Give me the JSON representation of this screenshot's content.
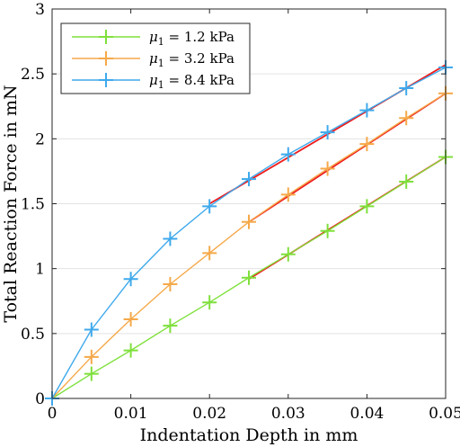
{
  "chart_data": {
    "type": "line",
    "xlabel": "Indentation Depth in mm",
    "ylabel": "Total Reaction Force in mN",
    "xlim": [
      0,
      0.05
    ],
    "ylim": [
      0,
      3
    ],
    "xticks": [
      "0",
      "0.01",
      "0.02",
      "0.03",
      "0.04",
      "0.05"
    ],
    "yticks": [
      "0",
      "0.5",
      "1",
      "1.5",
      "2",
      "2.5",
      "3"
    ],
    "grid": "horizontal",
    "legend_position": "top-left",
    "x": [
      0,
      0.005,
      0.01,
      0.015,
      0.02,
      0.025,
      0.03,
      0.035,
      0.04,
      0.045,
      0.05
    ],
    "series": [
      {
        "name": "μ1 = 1.2 kPa",
        "legend_math": "μ",
        "legend_sub": "1",
        "legend_rest": " = 1.2 kPa",
        "color": "#7fe03c",
        "values": [
          0,
          0.19,
          0.37,
          0.56,
          0.74,
          0.93,
          1.11,
          1.29,
          1.48,
          1.67,
          1.86
        ]
      },
      {
        "name": "μ1 = 3.2 kPa",
        "legend_math": "μ",
        "legend_sub": "1",
        "legend_rest": " = 3.2 kPa",
        "color": "#f5a94a",
        "values": [
          0,
          0.32,
          0.61,
          0.88,
          1.12,
          1.36,
          1.57,
          1.77,
          1.96,
          2.16,
          2.35
        ]
      },
      {
        "name": "μ1 = 8.4 kPa",
        "legend_math": "μ",
        "legend_sub": "1",
        "legend_rest": " = 8.4 kPa",
        "color": "#3fa9ec",
        "values": [
          0,
          0.53,
          0.92,
          1.23,
          1.48,
          1.69,
          1.88,
          2.05,
          2.22,
          2.39,
          2.55
        ]
      }
    ],
    "fits": [
      {
        "color": "#ee1c1c",
        "x": [
          0.025,
          0.05
        ],
        "values": [
          0.92,
          1.86
        ]
      },
      {
        "color": "#ee1c1c",
        "x": [
          0.025,
          0.05
        ],
        "values": [
          1.36,
          2.35
        ]
      },
      {
        "color": "#ee1c1c",
        "x": [
          0.02,
          0.05
        ],
        "values": [
          1.5,
          2.57
        ]
      }
    ]
  }
}
